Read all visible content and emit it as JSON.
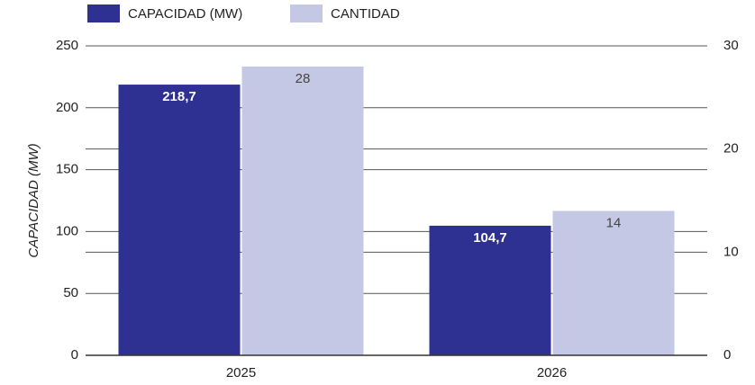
{
  "chart_data": {
    "type": "bar",
    "y_label": "CAPACIDAD (MW)",
    "categories": [
      "2025",
      "2026"
    ],
    "series": [
      {
        "name": "CAPACIDAD (MW)",
        "color": "#2e3192",
        "values": [
          218.7,
          104.7
        ],
        "value_labels": [
          "218,7",
          "104,7"
        ]
      },
      {
        "name": "CANTIDAD",
        "color": "#c5c8e4",
        "values": [
          28,
          14
        ],
        "axis": "y2"
      }
    ],
    "ylim": [
      0,
      250
    ],
    "yticks": [
      0,
      50,
      100,
      150,
      200,
      250
    ],
    "y2lim": [
      0,
      30
    ],
    "y2ticks": [
      0,
      10,
      20,
      30
    ],
    "grid": true,
    "legend": "top"
  }
}
